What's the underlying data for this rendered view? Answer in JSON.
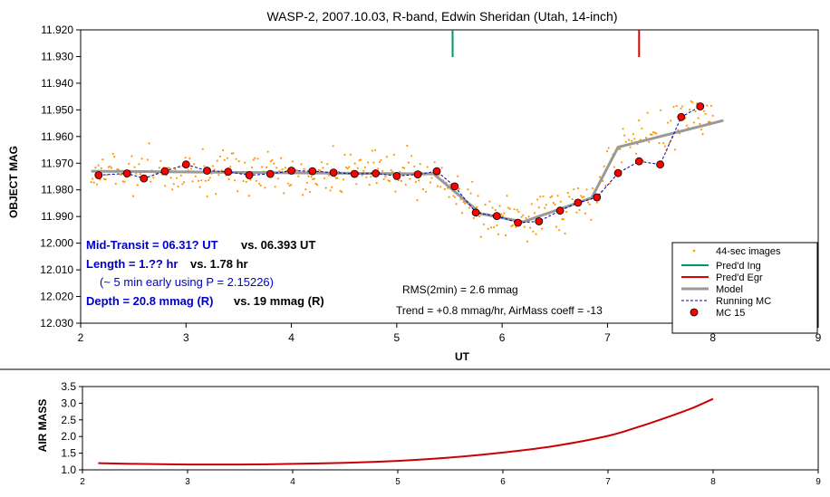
{
  "chart_data": [
    {
      "type": "scatter",
      "title": "WASP-2, 2007.10.03, R-band, Edwin Sheridan (Utah, 14-inch)",
      "xlabel": "UT",
      "ylabel": "OBJECT MAG",
      "xlim": [
        2,
        9
      ],
      "ylim": [
        11.92,
        12.03
      ],
      "y_inverted": true,
      "grid": false,
      "x_ticks": [
        "2",
        "3",
        "4",
        "5",
        "6",
        "7",
        "8",
        "9"
      ],
      "y_ticks": [
        "11.920",
        "11.930",
        "11.940",
        "11.950",
        "11.960",
        "11.970",
        "11.980",
        "11.990",
        "12.000",
        "12.010",
        "12.020",
        "12.030"
      ],
      "legend_position": "bottom-right",
      "legend": [
        "44-sec images",
        "Pred'd Ing",
        "Pred'd Egr",
        "Model",
        "Running MC",
        "MC 15"
      ],
      "colors": {
        "images": "#ff9900",
        "ingress": "#009966",
        "egress": "#dd0000",
        "model": "#999999",
        "running": "#0000aa",
        "mc": "#ff0000"
      },
      "predicted_ingress": 5.53,
      "predicted_egress": 7.3,
      "model": {
        "x": [
          2.1,
          5.35,
          5.8,
          6.2,
          6.85,
          7.1,
          8.1
        ],
        "y": [
          11.973,
          11.974,
          11.989,
          11.992,
          11.983,
          11.964,
          11.954
        ]
      },
      "mc15": {
        "x": [
          2.17,
          2.44,
          2.6,
          2.8,
          3.0,
          3.2,
          3.4,
          3.6,
          3.8,
          4.0,
          4.2,
          4.4,
          4.6,
          4.8,
          5.0,
          5.2,
          5.38,
          5.55,
          5.75,
          5.95,
          6.15,
          6.35,
          6.55,
          6.72,
          6.9,
          7.1,
          7.3,
          7.5,
          7.7,
          7.88
        ],
        "y": [
          11.9745,
          11.9738,
          11.9757,
          11.973,
          11.9705,
          11.9728,
          11.9732,
          11.9745,
          11.974,
          11.9728,
          11.973,
          11.9735,
          11.974,
          11.9738,
          11.9748,
          11.9742,
          11.973,
          11.9787,
          11.9885,
          11.9898,
          11.9923,
          11.9918,
          11.9878,
          11.9848,
          11.9828,
          11.9737,
          11.9693,
          11.9705,
          11.9527,
          11.9487
        ]
      },
      "scatter_range": {
        "x": [
          2.1,
          8.0
        ],
        "spread_mmag": 4
      },
      "annotations": {
        "mid_transit": "Mid-Transit = 06.31? UT",
        "mid_transit_vs": "vs. 06.393 UT",
        "length": "Length = 1.?? hr",
        "length_vs": "vs. 1.78 hr",
        "early": "(~ 5 min early using P = 2.15226)",
        "depth": "Depth = 20.8 mmag (R)",
        "depth_vs": "vs. 19 mmag  (R)",
        "rms": "RMS(2min) = 2.6 mmag",
        "trend": "Trend = +0.8 mmag/hr, AirMass coeff = -13"
      }
    },
    {
      "type": "line",
      "title": "",
      "xlabel": "",
      "ylabel": "AIR MASS",
      "xlim": [
        2,
        9
      ],
      "ylim": [
        1.0,
        3.5
      ],
      "x_ticks": [
        "2",
        "3",
        "4",
        "5",
        "6",
        "7",
        "8",
        "9"
      ],
      "y_ticks": [
        "1.0",
        "1.5",
        "2.0",
        "2.5",
        "3.0",
        "3.5"
      ],
      "series": [
        {
          "color": "#cc0000",
          "x": [
            2.15,
            2.5,
            3.0,
            3.5,
            4.0,
            4.5,
            5.0,
            5.5,
            6.0,
            6.5,
            7.0,
            7.3,
            7.6,
            7.8,
            8.0
          ],
          "y": [
            1.2,
            1.18,
            1.16,
            1.16,
            1.18,
            1.21,
            1.27,
            1.37,
            1.52,
            1.72,
            2.02,
            2.3,
            2.62,
            2.85,
            3.13
          ]
        }
      ]
    }
  ]
}
